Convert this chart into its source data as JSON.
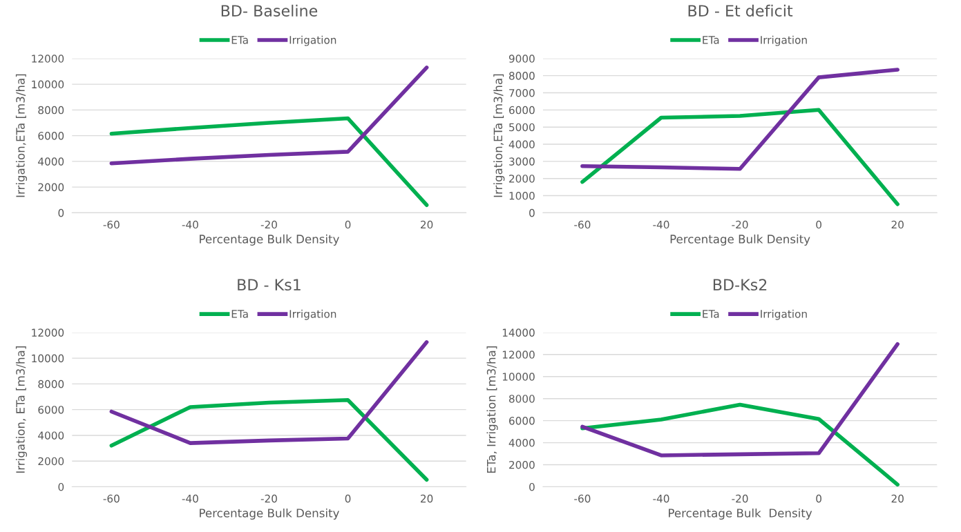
{
  "chart_data": [
    {
      "type": "line",
      "title": "BD- Baseline",
      "xlabel": "Percentage Bulk Density",
      "ylabel": "Irrigation,ETa [m3/ha]",
      "categories": [
        "-60",
        "-40",
        "-20",
        "0",
        "20"
      ],
      "ylim": [
        0,
        12000
      ],
      "yticks": [
        0,
        2000,
        4000,
        6000,
        8000,
        10000,
        12000
      ],
      "grid": "y",
      "legend": "top",
      "series": [
        {
          "name": "ETa",
          "color": "#00b050",
          "values": [
            6150,
            6600,
            7000,
            7350,
            600
          ]
        },
        {
          "name": "Irrigation",
          "color": "#7030a0",
          "values": [
            3850,
            4200,
            4500,
            4750,
            11300
          ]
        }
      ]
    },
    {
      "type": "line",
      "title": "BD - Et deficit",
      "xlabel": "Percentage Bulk Density",
      "ylabel": "Irrigation,ETa [m3/ha]",
      "categories": [
        "-60",
        "-40",
        "-20",
        "0",
        "20"
      ],
      "ylim": [
        0,
        9000
      ],
      "yticks": [
        0,
        1000,
        2000,
        3000,
        4000,
        5000,
        6000,
        7000,
        8000,
        9000
      ],
      "grid": "y",
      "legend": "top",
      "series": [
        {
          "name": "ETa",
          "color": "#00b050",
          "values": [
            1800,
            5550,
            5650,
            6000,
            500
          ]
        },
        {
          "name": "Irrigation",
          "color": "#7030a0",
          "values": [
            2720,
            2650,
            2560,
            7900,
            8350
          ]
        }
      ]
    },
    {
      "type": "line",
      "title": "BD - Ks1",
      "xlabel": "Percentage Bulk Density",
      "ylabel": "Irrigation, ETa [m3/ha]",
      "categories": [
        "-60",
        "-40",
        "-20",
        "0",
        "20"
      ],
      "ylim": [
        0,
        12000
      ],
      "yticks": [
        0,
        2000,
        4000,
        6000,
        8000,
        10000,
        12000
      ],
      "grid": "y",
      "legend": "top",
      "series": [
        {
          "name": "ETa",
          "color": "#00b050",
          "values": [
            3200,
            6200,
            6550,
            6750,
            550
          ]
        },
        {
          "name": "Irrigation",
          "color": "#7030a0",
          "values": [
            5850,
            3400,
            3600,
            3750,
            11250
          ]
        }
      ]
    },
    {
      "type": "line",
      "title": "BD-Ks2",
      "xlabel": "Percentage Bulk  Density",
      "ylabel": "ETa, Irrigation [m3/ha]",
      "categories": [
        "-60",
        "-40",
        "-20",
        "0",
        "20"
      ],
      "ylim": [
        0,
        14000
      ],
      "yticks": [
        0,
        2000,
        4000,
        6000,
        8000,
        10000,
        12000,
        14000
      ],
      "grid": "y",
      "legend": "top",
      "series": [
        {
          "name": "ETa",
          "color": "#00b050",
          "values": [
            5300,
            6100,
            7450,
            6150,
            200
          ]
        },
        {
          "name": "Irrigation",
          "color": "#7030a0",
          "values": [
            5450,
            2850,
            2950,
            3050,
            12950
          ]
        }
      ]
    }
  ]
}
